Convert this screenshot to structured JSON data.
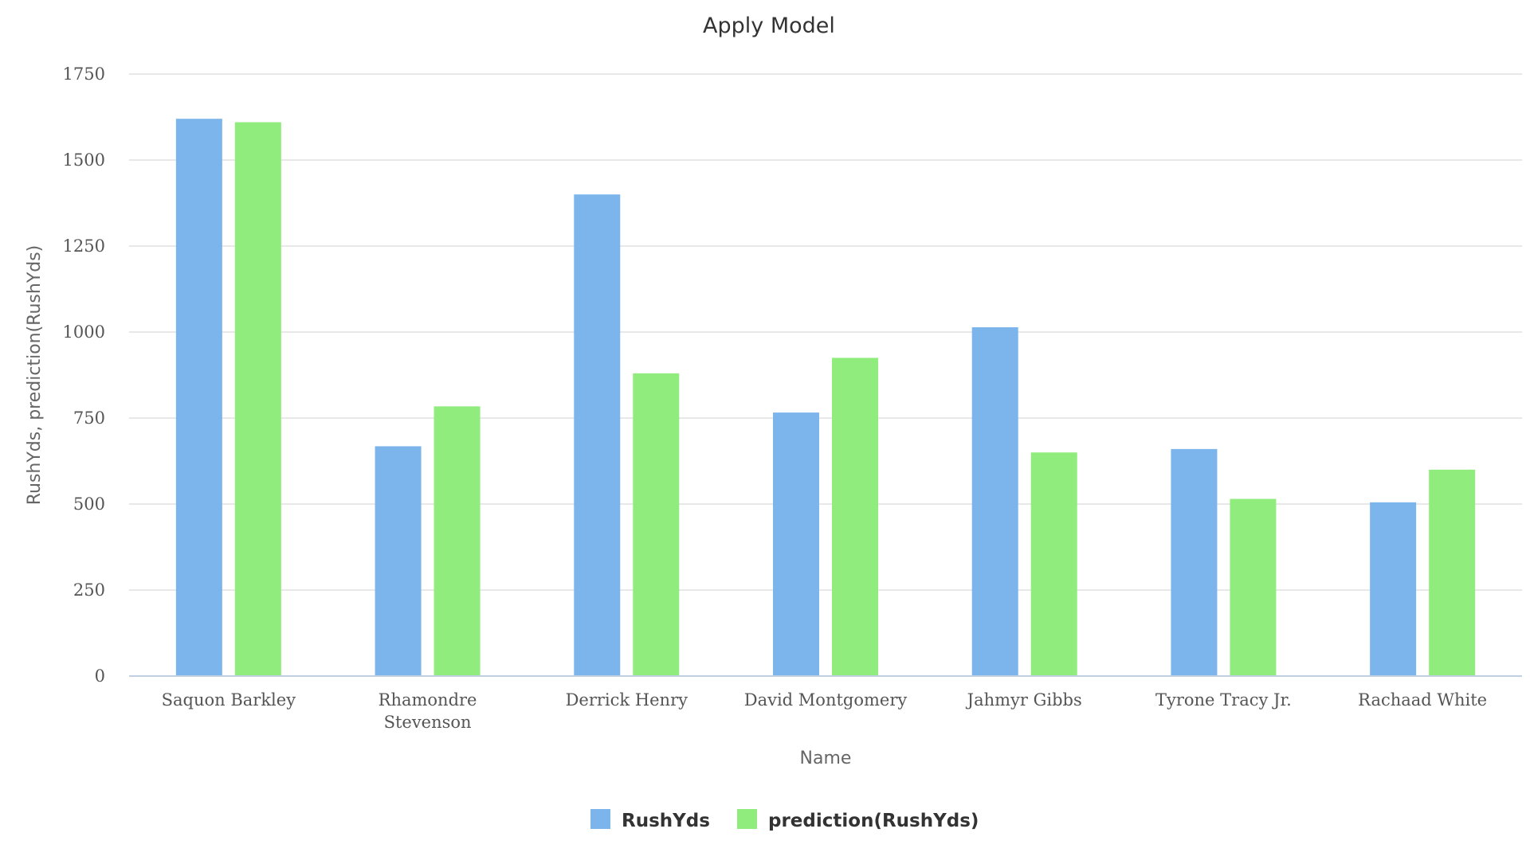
{
  "chart_data": {
    "type": "bar",
    "title": "Apply Model",
    "xlabel": "Name",
    "ylabel": "RushYds, prediction(RushYds)",
    "ylim": [
      0,
      1750
    ],
    "yticks": [
      0,
      250,
      500,
      750,
      1000,
      1250,
      1500,
      1750
    ],
    "grid": true,
    "legend_position": "bottom-center",
    "categories": [
      [
        "Saquon Barkley"
      ],
      [
        "Rhamondre",
        "Stevenson"
      ],
      [
        "Derrick Henry"
      ],
      [
        "David Montgomery"
      ],
      [
        "Jahmyr Gibbs"
      ],
      [
        "Tyrone Tracy Jr."
      ],
      [
        "Rachaad White"
      ]
    ],
    "series": [
      {
        "name": "RushYds",
        "color": "#7cb5ec",
        "values": [
          1620,
          668,
          1400,
          766,
          1014,
          660,
          505
        ]
      },
      {
        "name": "prediction(RushYds)",
        "color": "#90ed7d",
        "values": [
          1610,
          784,
          880,
          925,
          650,
          515,
          600
        ]
      }
    ]
  }
}
